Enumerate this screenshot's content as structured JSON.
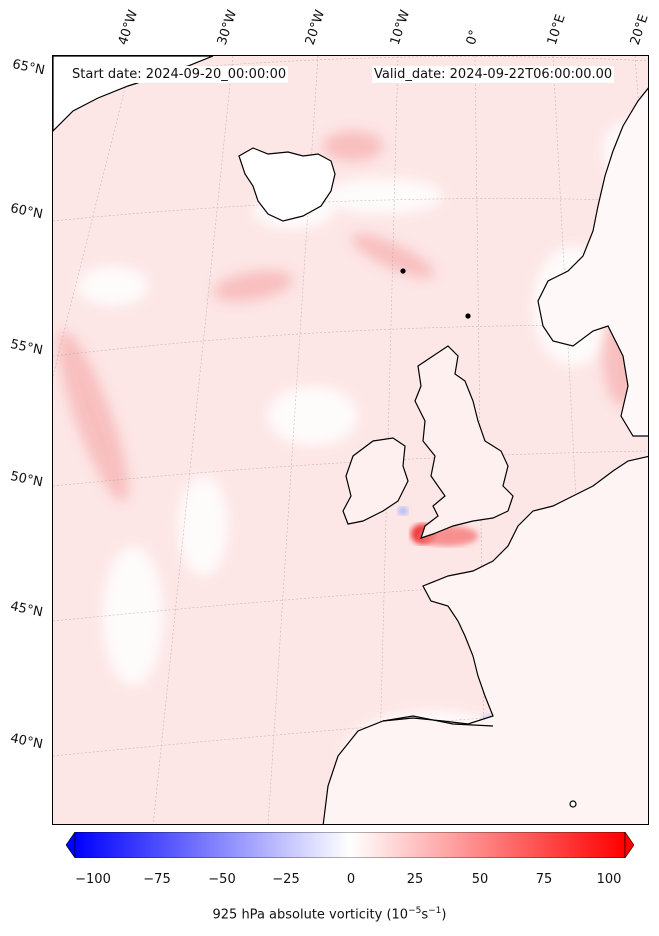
{
  "header": {
    "start_date": "Start date: 2024-09-20_00:00:00",
    "valid_date": "Valid_date: 2024-09-22T06:00:00.00"
  },
  "longitude_labels": [
    "40°W",
    "30°W",
    "20°W",
    "10°W",
    "0°",
    "10°E",
    "20°E"
  ],
  "latitude_labels": [
    "65°N",
    "60°N",
    "55°N",
    "50°N",
    "45°N",
    "40°N"
  ],
  "colorbar": {
    "ticks": [
      "−100",
      "−75",
      "−50",
      "−25",
      "0",
      "25",
      "50",
      "75",
      "100"
    ],
    "min": -100,
    "max": 100,
    "low_color": "#0000ff",
    "mid_color": "#ffffff",
    "high_color": "#ff0000",
    "label_text": "925 hPa absolute vorticity (10",
    "label_exp1": "−5",
    "label_mid": "s",
    "label_exp2": "−1",
    "label_end": ")"
  },
  "colors": {
    "background_field": "#fde9e9",
    "coastline": "#000000"
  }
}
